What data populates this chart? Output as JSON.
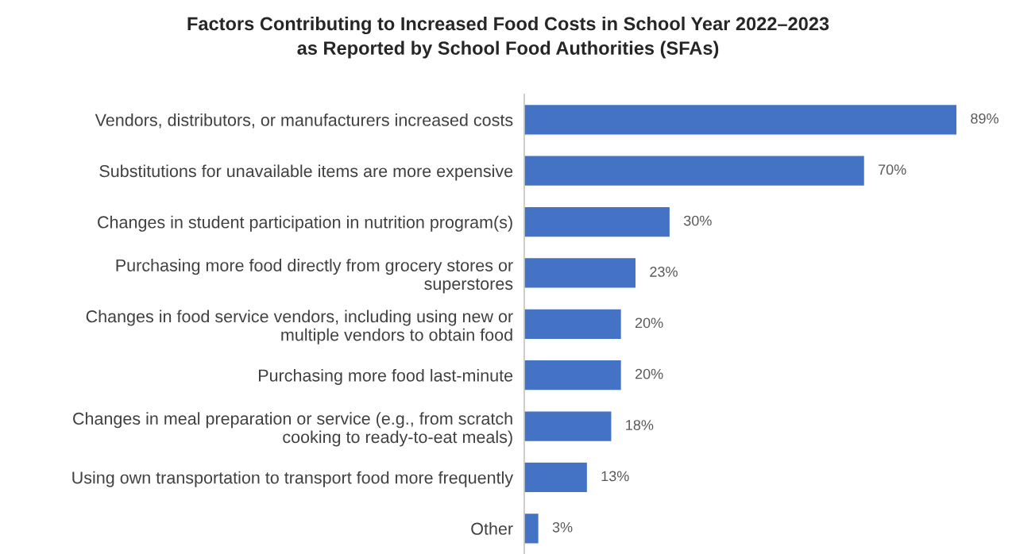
{
  "chart_data": {
    "type": "bar",
    "orientation": "horizontal",
    "title": "Factors Contributing to Increased Food Costs in School Year 2022–2023 as Reported by School Food Authorities (SFAs)",
    "categories": [
      "Vendors, distributors, or manufacturers increased costs",
      "Substitutions for unavailable items are more expensive",
      "Changes in student participation in nutrition program(s)",
      "Purchasing more food directly from grocery stores or superstores",
      "Changes in food service vendors, including using new or multiple vendors to obtain food",
      "Purchasing more food last-minute",
      "Changes in meal preparation or service (e.g., from scratch cooking to ready-to-eat meals)",
      "Using own transportation to transport food more frequently",
      "Other"
    ],
    "values": [
      89,
      70,
      30,
      23,
      20,
      20,
      18,
      13,
      3
    ],
    "value_labels": [
      "89%",
      "70%",
      "30%",
      "23%",
      "20%",
      "20%",
      "18%",
      "13%",
      "3%"
    ],
    "color": "#4472c4",
    "grid": false,
    "legend": false
  }
}
